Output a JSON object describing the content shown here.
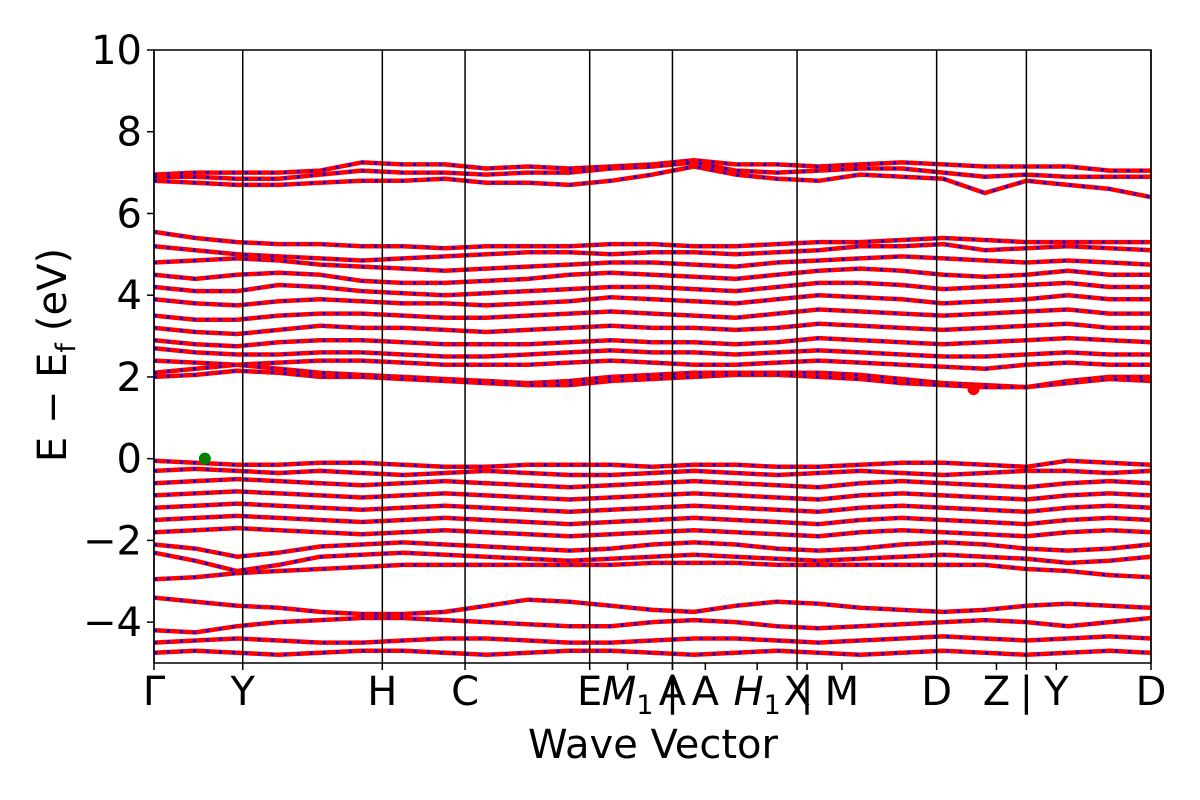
{
  "chart_data": {
    "type": "line",
    "xlabel": "Wave Vector",
    "ylabel": "E − E",
    "ylabel_sub": "f",
    "ylabel_unit": "(eV)",
    "ylim": [
      -5,
      10
    ],
    "yticks": [
      -4,
      -2,
      0,
      2,
      4,
      6,
      8,
      10
    ],
    "ytick_labels": [
      "−4",
      "−2",
      "0",
      "2",
      "4",
      "6",
      "8",
      "10"
    ],
    "xlim": [
      0,
      1
    ],
    "kpoints": [
      {
        "label": "Γ",
        "x": 0.0
      },
      {
        "label": "Y",
        "x": 0.089
      },
      {
        "label": "H",
        "x": 0.229
      },
      {
        "label": "C",
        "x": 0.312
      },
      {
        "label": "E",
        "x": 0.437
      },
      {
        "label": "M",
        "sub": "1",
        "x": 0.475
      },
      {
        "label": "A",
        "x": 0.52
      },
      {
        "label": "|",
        "x": 0.52
      },
      {
        "label": "A",
        "x": 0.553
      },
      {
        "label": "H",
        "sub": "1",
        "x": 0.605
      },
      {
        "label": "X",
        "x": 0.645
      },
      {
        "label": "|",
        "x": 0.655
      },
      {
        "label": "M",
        "x": 0.69
      },
      {
        "label": "D",
        "x": 0.785
      },
      {
        "label": "Z",
        "x": 0.845
      },
      {
        "label": "|",
        "x": 0.875
      },
      {
        "label": "Y",
        "x": 0.905
      },
      {
        "label": "D",
        "x": 1.0
      }
    ],
    "vlines": [
      0.0,
      0.089,
      0.229,
      0.312,
      0.437,
      0.52,
      0.645,
      0.785,
      0.875,
      1.0
    ],
    "grid": false,
    "series": [
      {
        "color": "#ff0000",
        "dash_color": "#0000ff",
        "bands": [
          [
            6.95,
            7.0,
            7.0,
            7.0,
            7.05,
            7.25,
            7.2,
            7.2,
            7.1,
            7.15,
            7.1,
            7.15,
            7.2,
            7.3,
            7.2,
            7.2,
            7.15,
            7.2,
            7.25,
            7.2,
            7.15,
            7.15,
            7.15,
            7.05,
            7.05
          ],
          [
            6.9,
            6.9,
            6.85,
            6.85,
            6.95,
            7.05,
            7.0,
            7.0,
            6.95,
            7.0,
            7.0,
            7.1,
            7.15,
            7.25,
            7.05,
            7.0,
            7.05,
            7.1,
            7.1,
            7.0,
            6.9,
            6.95,
            6.9,
            6.9,
            6.9
          ],
          [
            6.8,
            6.75,
            6.7,
            6.7,
            6.75,
            6.8,
            6.8,
            6.85,
            6.75,
            6.75,
            6.7,
            6.8,
            6.95,
            7.15,
            6.95,
            6.85,
            6.8,
            6.95,
            6.9,
            6.85,
            6.5,
            6.8,
            6.7,
            6.6,
            6.4
          ],
          [
            5.55,
            5.4,
            5.3,
            5.25,
            5.25,
            5.2,
            5.2,
            5.15,
            5.2,
            5.2,
            5.2,
            5.25,
            5.25,
            5.2,
            5.2,
            5.25,
            5.3,
            5.3,
            5.35,
            5.4,
            5.35,
            5.3,
            5.3,
            5.3,
            5.3
          ],
          [
            5.2,
            5.1,
            5.0,
            4.95,
            4.9,
            4.85,
            4.9,
            4.95,
            5.0,
            5.05,
            5.05,
            5.0,
            5.05,
            5.05,
            5.0,
            5.05,
            5.1,
            5.2,
            5.2,
            5.25,
            5.1,
            5.15,
            5.2,
            5.15,
            5.1
          ],
          [
            4.8,
            4.85,
            4.9,
            4.85,
            4.75,
            4.7,
            4.65,
            4.6,
            4.65,
            4.7,
            4.75,
            4.8,
            4.8,
            4.75,
            4.7,
            4.8,
            4.85,
            4.9,
            4.95,
            4.9,
            4.85,
            4.8,
            4.85,
            4.8,
            4.75
          ],
          [
            4.5,
            4.4,
            4.5,
            4.55,
            4.5,
            4.35,
            4.3,
            4.3,
            4.35,
            4.4,
            4.5,
            4.55,
            4.5,
            4.45,
            4.4,
            4.5,
            4.6,
            4.65,
            4.6,
            4.5,
            4.45,
            4.5,
            4.6,
            4.5,
            4.5
          ],
          [
            4.2,
            4.1,
            4.1,
            4.25,
            4.2,
            4.1,
            4.05,
            4.0,
            4.05,
            4.1,
            4.15,
            4.2,
            4.2,
            4.15,
            4.1,
            4.2,
            4.3,
            4.3,
            4.25,
            4.15,
            4.2,
            4.25,
            4.3,
            4.2,
            4.2
          ],
          [
            3.9,
            3.8,
            3.75,
            3.85,
            3.9,
            3.85,
            3.8,
            3.8,
            3.75,
            3.8,
            3.85,
            3.95,
            3.9,
            3.85,
            3.8,
            3.9,
            4.0,
            3.95,
            3.9,
            3.8,
            3.85,
            3.9,
            4.0,
            3.9,
            3.9
          ],
          [
            3.5,
            3.4,
            3.4,
            3.5,
            3.55,
            3.55,
            3.5,
            3.45,
            3.45,
            3.5,
            3.55,
            3.6,
            3.55,
            3.5,
            3.45,
            3.55,
            3.65,
            3.6,
            3.55,
            3.5,
            3.55,
            3.6,
            3.65,
            3.55,
            3.55
          ],
          [
            3.2,
            3.1,
            3.05,
            3.15,
            3.25,
            3.2,
            3.2,
            3.15,
            3.1,
            3.15,
            3.2,
            3.25,
            3.2,
            3.2,
            3.15,
            3.2,
            3.3,
            3.25,
            3.2,
            3.15,
            3.2,
            3.25,
            3.3,
            3.2,
            3.2
          ],
          [
            2.9,
            2.8,
            2.75,
            2.85,
            2.9,
            2.9,
            2.85,
            2.8,
            2.8,
            2.8,
            2.85,
            2.9,
            2.85,
            2.85,
            2.8,
            2.85,
            2.95,
            2.9,
            2.85,
            2.8,
            2.85,
            2.9,
            2.95,
            2.9,
            2.85
          ],
          [
            2.7,
            2.6,
            2.55,
            2.55,
            2.6,
            2.6,
            2.55,
            2.5,
            2.5,
            2.55,
            2.6,
            2.65,
            2.6,
            2.6,
            2.55,
            2.6,
            2.65,
            2.6,
            2.55,
            2.5,
            2.5,
            2.55,
            2.6,
            2.55,
            2.55
          ],
          [
            2.4,
            2.35,
            2.3,
            2.35,
            2.4,
            2.4,
            2.35,
            2.3,
            2.3,
            2.3,
            2.35,
            2.4,
            2.35,
            2.3,
            2.3,
            2.35,
            2.4,
            2.35,
            2.3,
            2.25,
            2.2,
            2.3,
            2.35,
            2.3,
            2.3
          ],
          [
            2.1,
            2.2,
            2.3,
            2.2,
            2.1,
            2.05,
            2.0,
            1.95,
            1.9,
            1.85,
            1.9,
            2.0,
            2.05,
            2.1,
            2.1,
            2.1,
            2.1,
            2.05,
            1.95,
            1.85,
            1.8,
            1.75,
            1.9,
            2.0,
            2.0
          ],
          [
            2.0,
            2.05,
            2.15,
            2.1,
            2.0,
            2.0,
            1.95,
            1.9,
            1.85,
            1.8,
            1.8,
            1.9,
            1.95,
            2.0,
            2.05,
            2.05,
            2.0,
            1.95,
            1.85,
            1.8,
            1.75,
            1.75,
            1.85,
            1.95,
            1.9
          ],
          [
            -0.05,
            -0.1,
            -0.15,
            -0.15,
            -0.1,
            -0.1,
            -0.15,
            -0.2,
            -0.2,
            -0.15,
            -0.15,
            -0.15,
            -0.2,
            -0.15,
            -0.15,
            -0.2,
            -0.2,
            -0.15,
            -0.1,
            -0.1,
            -0.15,
            -0.2,
            -0.05,
            -0.1,
            -0.15
          ],
          [
            -0.3,
            -0.25,
            -0.3,
            -0.35,
            -0.3,
            -0.35,
            -0.4,
            -0.35,
            -0.3,
            -0.35,
            -0.4,
            -0.4,
            -0.35,
            -0.3,
            -0.35,
            -0.4,
            -0.35,
            -0.3,
            -0.35,
            -0.4,
            -0.35,
            -0.3,
            -0.3,
            -0.35,
            -0.3
          ],
          [
            -0.6,
            -0.55,
            -0.5,
            -0.55,
            -0.6,
            -0.65,
            -0.6,
            -0.55,
            -0.6,
            -0.65,
            -0.7,
            -0.65,
            -0.6,
            -0.55,
            -0.6,
            -0.65,
            -0.7,
            -0.6,
            -0.55,
            -0.6,
            -0.65,
            -0.7,
            -0.6,
            -0.55,
            -0.6
          ],
          [
            -0.9,
            -0.85,
            -0.8,
            -0.85,
            -0.9,
            -0.95,
            -0.9,
            -0.85,
            -0.9,
            -0.95,
            -1.0,
            -0.95,
            -0.9,
            -0.85,
            -0.9,
            -0.95,
            -1.0,
            -0.9,
            -0.85,
            -0.9,
            -0.95,
            -1.0,
            -0.9,
            -0.85,
            -0.9
          ],
          [
            -1.2,
            -1.15,
            -1.1,
            -1.15,
            -1.2,
            -1.25,
            -1.2,
            -1.15,
            -1.2,
            -1.25,
            -1.3,
            -1.25,
            -1.2,
            -1.15,
            -1.2,
            -1.25,
            -1.3,
            -1.2,
            -1.15,
            -1.2,
            -1.25,
            -1.3,
            -1.2,
            -1.15,
            -1.2
          ],
          [
            -1.5,
            -1.45,
            -1.4,
            -1.45,
            -1.5,
            -1.55,
            -1.5,
            -1.45,
            -1.5,
            -1.55,
            -1.6,
            -1.55,
            -1.5,
            -1.45,
            -1.5,
            -1.55,
            -1.6,
            -1.5,
            -1.45,
            -1.5,
            -1.55,
            -1.6,
            -1.5,
            -1.45,
            -1.5
          ],
          [
            -1.8,
            -1.75,
            -1.7,
            -1.75,
            -1.8,
            -1.85,
            -1.8,
            -1.75,
            -1.8,
            -1.85,
            -1.9,
            -1.85,
            -1.8,
            -1.75,
            -1.8,
            -1.85,
            -1.9,
            -1.8,
            -1.75,
            -1.8,
            -1.85,
            -1.9,
            -1.8,
            -1.75,
            -1.8
          ],
          [
            -2.1,
            -2.2,
            -2.4,
            -2.3,
            -2.15,
            -2.1,
            -2.05,
            -2.1,
            -2.15,
            -2.2,
            -2.25,
            -2.2,
            -2.1,
            -2.05,
            -2.1,
            -2.2,
            -2.25,
            -2.2,
            -2.1,
            -2.05,
            -2.1,
            -2.2,
            -2.25,
            -2.2,
            -2.1
          ],
          [
            -2.3,
            -2.5,
            -2.75,
            -2.6,
            -2.4,
            -2.35,
            -2.3,
            -2.35,
            -2.4,
            -2.45,
            -2.5,
            -2.45,
            -2.4,
            -2.35,
            -2.4,
            -2.45,
            -2.5,
            -2.45,
            -2.4,
            -2.35,
            -2.4,
            -2.45,
            -2.55,
            -2.5,
            -2.4
          ],
          [
            -2.95,
            -2.9,
            -2.8,
            -2.75,
            -2.7,
            -2.65,
            -2.6,
            -2.6,
            -2.6,
            -2.6,
            -2.6,
            -2.6,
            -2.55,
            -2.55,
            -2.55,
            -2.6,
            -2.6,
            -2.6,
            -2.6,
            -2.6,
            -2.6,
            -2.7,
            -2.75,
            -2.85,
            -2.9
          ],
          [
            -3.4,
            -3.5,
            -3.6,
            -3.65,
            -3.75,
            -3.8,
            -3.8,
            -3.75,
            -3.6,
            -3.45,
            -3.5,
            -3.6,
            -3.7,
            -3.75,
            -3.6,
            -3.5,
            -3.55,
            -3.65,
            -3.7,
            -3.75,
            -3.7,
            -3.6,
            -3.55,
            -3.6,
            -3.65
          ],
          [
            -4.2,
            -4.25,
            -4.1,
            -4.0,
            -3.95,
            -3.9,
            -3.9,
            -3.95,
            -4.0,
            -4.05,
            -4.1,
            -4.1,
            -4.0,
            -3.95,
            -4.0,
            -4.1,
            -4.15,
            -4.1,
            -4.05,
            -4.0,
            -3.95,
            -4.0,
            -4.1,
            -4.0,
            -3.9
          ],
          [
            -4.5,
            -4.45,
            -4.4,
            -4.45,
            -4.5,
            -4.5,
            -4.45,
            -4.4,
            -4.4,
            -4.45,
            -4.5,
            -4.5,
            -4.45,
            -4.4,
            -4.4,
            -4.45,
            -4.5,
            -4.45,
            -4.4,
            -4.35,
            -4.4,
            -4.45,
            -4.4,
            -4.35,
            -4.4
          ],
          [
            -4.75,
            -4.7,
            -4.75,
            -4.8,
            -4.75,
            -4.7,
            -4.7,
            -4.75,
            -4.8,
            -4.75,
            -4.7,
            -4.7,
            -4.75,
            -4.8,
            -4.75,
            -4.7,
            -4.75,
            -4.8,
            -4.75,
            -4.7,
            -4.75,
            -4.8,
            -4.75,
            -4.7,
            -4.75
          ]
        ]
      }
    ],
    "markers": [
      {
        "name": "vbm-marker",
        "x": 0.051,
        "y": 0.0,
        "color": "#008000"
      },
      {
        "name": "cbm-marker",
        "x": 0.822,
        "y": 1.7,
        "color": "#ff0000"
      }
    ]
  }
}
